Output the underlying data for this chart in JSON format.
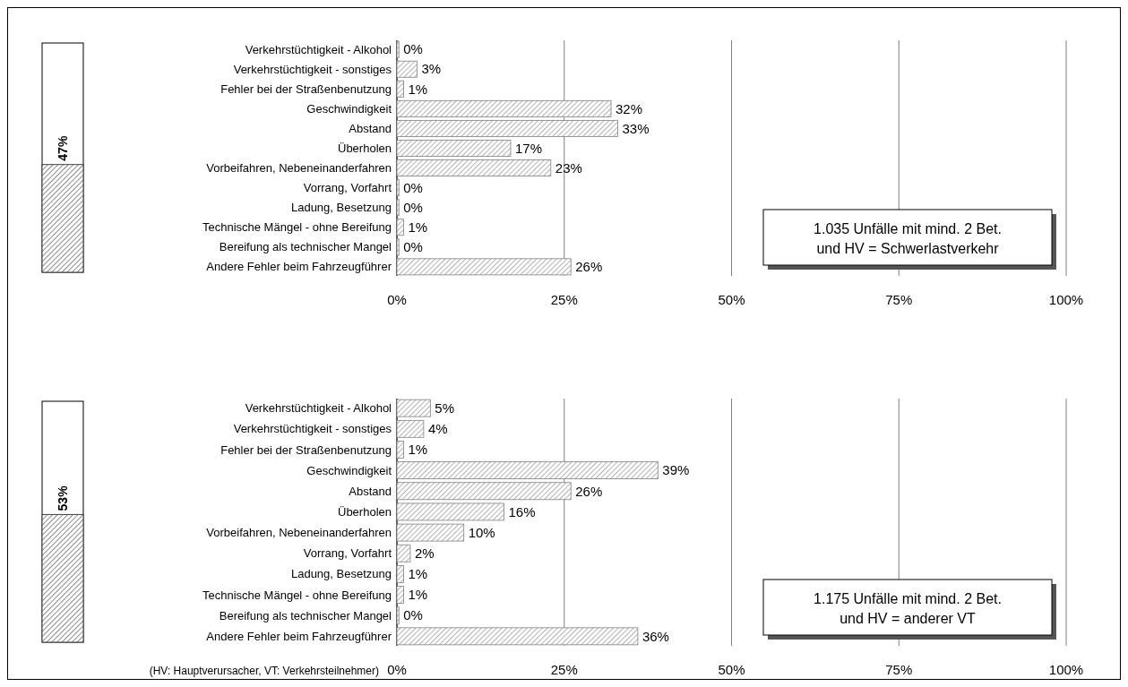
{
  "chart_data": [
    {
      "type": "bar",
      "categories": [
        null
      ],
      "ylim": [
        0,
        100
      ],
      "series": [
        {
          "color": "#404040",
          "values": [
            47
          ],
          "value_labels": [
            "47%"
          ]
        }
      ]
    },
    {
      "type": "bar",
      "orientation": "horizontal",
      "categories": [
        "Verkehrstüchtigkeit - Alkohol",
        "Verkehrstüchtigkeit - sonstiges",
        "Fehler bei der Straßenbenutzung",
        "Geschwindigkeit",
        "Abstand",
        "Überholen",
        "Vorbeifahren, Nebeneinanderfahren",
        "Vorrang, Vorfahrt",
        "Ladung, Besetzung",
        "Technische Mängel - ohne Bereifung",
        "Bereifung als technischer Mangel",
        "Andere Fehler beim Fahrzeugführer"
      ],
      "values": [
        0.3,
        3,
        1,
        32,
        33,
        17,
        23,
        0.3,
        0.3,
        1,
        0.3,
        26
      ],
      "value_labels": [
        "0%",
        "3%",
        "1%",
        "32%",
        "33%",
        "17%",
        "23%",
        "0%",
        "0%",
        "1%",
        "0%",
        "26%"
      ],
      "color": "#808080",
      "xlim": [
        0,
        100
      ],
      "xticks": [
        {
          "value": 0,
          "label": "0%"
        },
        {
          "value": 25,
          "label": "25%"
        },
        {
          "value": 50,
          "label": "50%"
        },
        {
          "value": 75,
          "label": "75%"
        },
        {
          "value": 100,
          "label": "100%"
        }
      ],
      "grid": "x",
      "annotations": [
        "1.035 Unfälle mit mind. 2 Bet.\nund HV = Schwerlastverkehr"
      ]
    },
    {
      "type": "bar",
      "categories": [
        null
      ],
      "ylim": [
        0,
        100
      ],
      "series": [
        {
          "color": "#404040",
          "values": [
            53
          ],
          "value_labels": [
            "53%"
          ]
        }
      ]
    },
    {
      "type": "bar",
      "orientation": "horizontal",
      "categories": [
        "Verkehrstüchtigkeit - Alkohol",
        "Verkehrstüchtigkeit - sonstiges",
        "Fehler bei der Straßenbenutzung",
        "Geschwindigkeit",
        "Abstand",
        "Überholen",
        "Vorbeifahren, Nebeneinanderfahren",
        "Vorrang, Vorfahrt",
        "Ladung, Besetzung",
        "Technische Mängel - ohne Bereifung",
        "Bereifung als technischer Mangel",
        "Andere Fehler beim Fahrzeugführer"
      ],
      "values": [
        5,
        4,
        1,
        39,
        26,
        16,
        10,
        2,
        1,
        1,
        0.3,
        36
      ],
      "value_labels": [
        "5%",
        "4%",
        "1%",
        "39%",
        "26%",
        "16%",
        "10%",
        "2%",
        "1%",
        "1%",
        "0%",
        "36%"
      ],
      "color": "#808080",
      "xlim": [
        0,
        100
      ],
      "xticks": [
        {
          "value": 0,
          "label": "0%"
        },
        {
          "value": 25,
          "label": "25%"
        },
        {
          "value": 50,
          "label": "50%"
        },
        {
          "value": 75,
          "label": "75%"
        },
        {
          "value": 100,
          "label": "100%"
        }
      ],
      "grid": "x",
      "annotations": [
        "1.175 Unfälle mit mind. 2 Bet.\nund HV = anderer VT",
        "(HV: Hauptverursacher, VT: Verkehrsteilnehmer)"
      ]
    }
  ]
}
